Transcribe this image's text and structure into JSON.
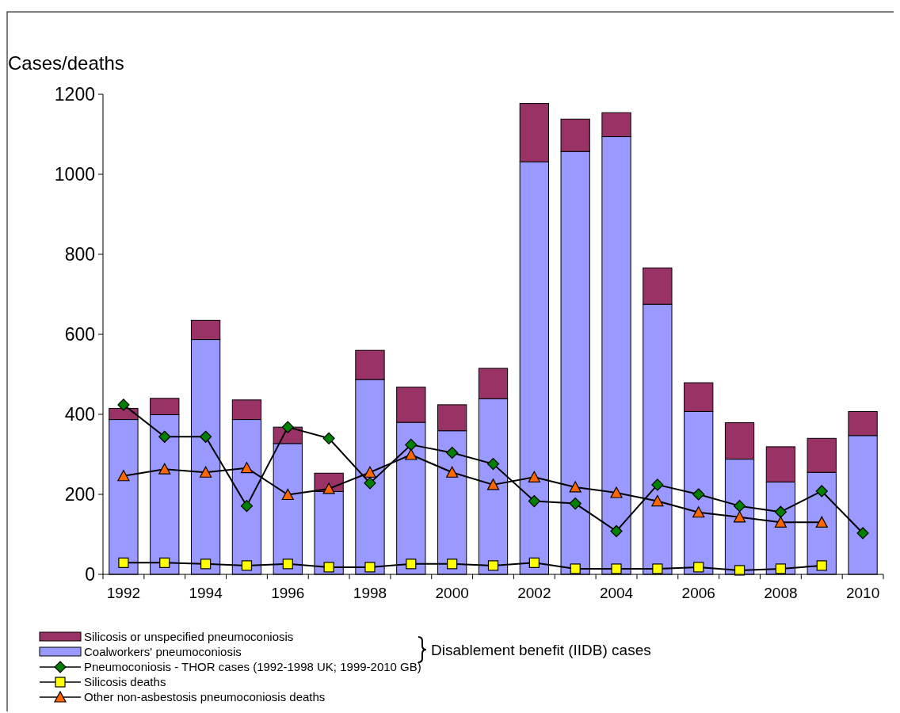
{
  "chart_data": {
    "type": "bar",
    "stacked": true,
    "ylabel": "Cases/deaths",
    "categories": [
      "1992",
      null,
      "1994",
      null,
      "1996",
      null,
      "1998",
      null,
      "2000",
      null,
      "2002",
      null,
      "2004",
      null,
      "2006",
      null,
      "2008",
      null,
      "2010"
    ],
    "ylim": [
      0,
      1200
    ],
    "yticks": [
      0,
      200,
      400,
      600,
      800,
      1000,
      1200
    ],
    "grid": false,
    "legend": "bottom",
    "annotations": [
      "Disablement benefit (IIDB) cases"
    ],
    "series": [
      {
        "name": "Coalworkers' pneumoconiosis",
        "color": "#9999ff",
        "values": [
          387,
          399,
          587,
          387,
          327,
          207,
          487,
          380,
          359,
          439,
          1031,
          1057,
          1094,
          675,
          407,
          288,
          231,
          255,
          347
        ]
      },
      {
        "name": "Silicosis or unspecified pneumoconiosis",
        "color": "#993366",
        "values": [
          28,
          41,
          48,
          49,
          41,
          46,
          73,
          88,
          65,
          76,
          146,
          81,
          60,
          91,
          72,
          91,
          88,
          85,
          60
        ]
      },
      {
        "name": "Pneumoconiosis - THOR cases (1992-1998 UK; 1999-2010 GB)",
        "type": "line",
        "color": "#008000",
        "marker": "diamond",
        "values": [
          424,
          344,
          344,
          171,
          368,
          340,
          228,
          324,
          304,
          276,
          183,
          177,
          108,
          224,
          200,
          171,
          156,
          208,
          103
        ]
      },
      {
        "name": "Silicosis deaths",
        "type": "line",
        "color": "#ffff00",
        "marker": "square",
        "values": [
          29,
          29,
          26,
          22,
          26,
          18,
          18,
          26,
          26,
          22,
          29,
          14,
          14,
          14,
          18,
          10,
          14,
          22,
          null
        ]
      },
      {
        "name": "Other non-asbestosis pneumoconiosis deaths",
        "type": "line",
        "color": "#ff6600",
        "marker": "triangle",
        "values": [
          246,
          263,
          255,
          266,
          199,
          214,
          255,
          299,
          255,
          224,
          243,
          218,
          204,
          183,
          155,
          143,
          130,
          130,
          null
        ]
      }
    ]
  }
}
